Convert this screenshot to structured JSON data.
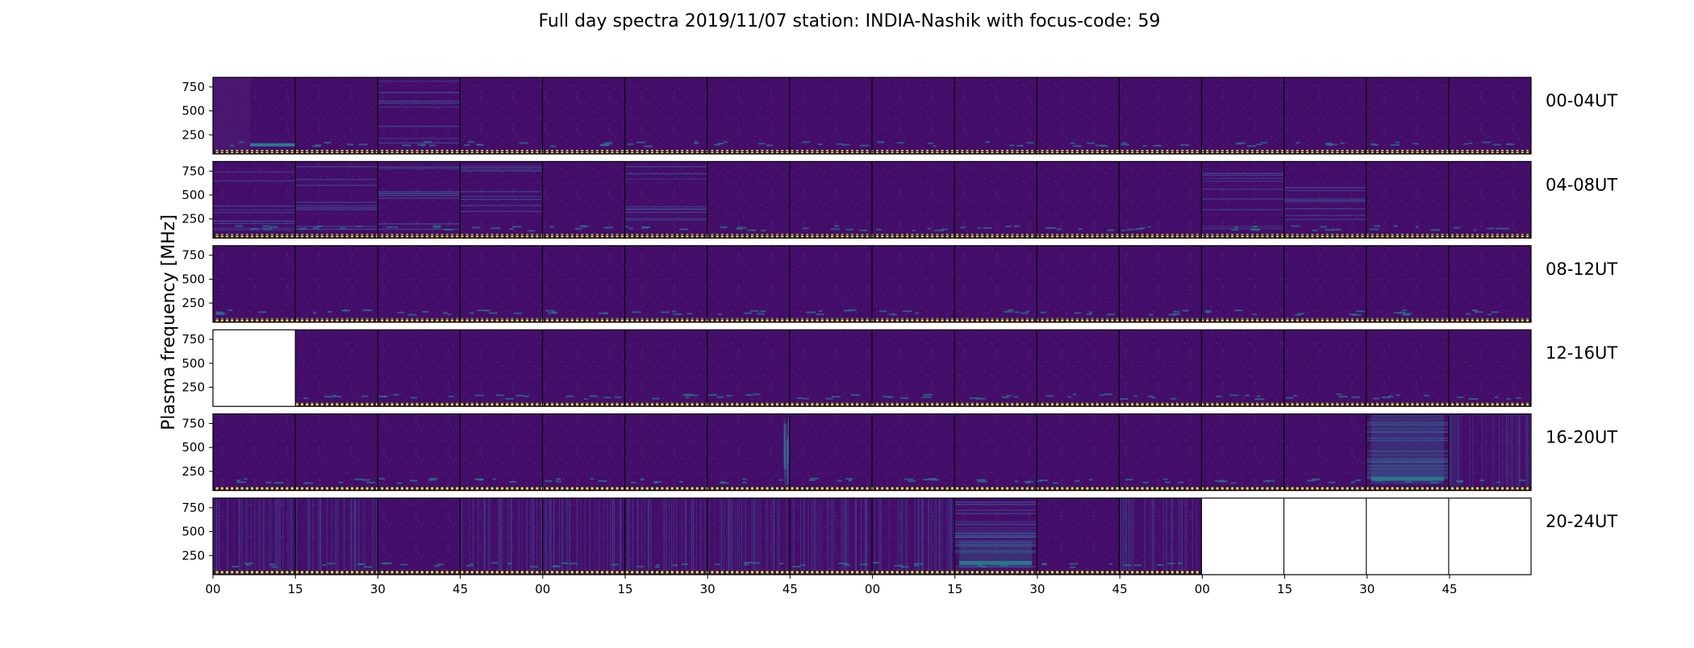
{
  "chart_data": {
    "type": "heatmap",
    "title": "Full day spectra 2019/11/07 station: INDIA-Nashik with focus-code: 59",
    "ylabel": "Plasma frequency [MHz]",
    "xlabel": "",
    "y_ticks": [
      "750",
      "500",
      "250"
    ],
    "x_ticks": [
      "00",
      "15",
      "30",
      "45",
      "00",
      "15",
      "30",
      "45",
      "00",
      "15",
      "30",
      "45",
      "00",
      "15",
      "30",
      "45"
    ],
    "colormap": "viridis",
    "colors": {
      "background": "#440d6a",
      "stripe": "#fde725",
      "accent": "#2a7b8e",
      "empty": "#ffffff"
    },
    "rows": [
      {
        "label": "00-04UT",
        "panels": [
          {
            "state": "data",
            "activity": "lowband-left"
          },
          {
            "state": "data",
            "activity": "quiet"
          },
          {
            "state": "data",
            "activity": "lines"
          },
          {
            "state": "data",
            "activity": "quiet"
          },
          {
            "state": "data",
            "activity": "quiet"
          },
          {
            "state": "data",
            "activity": "quiet"
          },
          {
            "state": "data",
            "activity": "quiet"
          },
          {
            "state": "data",
            "activity": "quiet"
          },
          {
            "state": "data",
            "activity": "quiet"
          },
          {
            "state": "data",
            "activity": "quiet"
          },
          {
            "state": "data",
            "activity": "quiet"
          },
          {
            "state": "data",
            "activity": "quiet"
          },
          {
            "state": "data",
            "activity": "quiet"
          },
          {
            "state": "data",
            "activity": "quiet"
          },
          {
            "state": "data",
            "activity": "quiet"
          },
          {
            "state": "data",
            "activity": "quiet"
          }
        ]
      },
      {
        "label": "04-08UT",
        "panels": [
          {
            "state": "data",
            "activity": "lines"
          },
          {
            "state": "data",
            "activity": "lines"
          },
          {
            "state": "data",
            "activity": "lines"
          },
          {
            "state": "data",
            "activity": "lines"
          },
          {
            "state": "data",
            "activity": "quiet"
          },
          {
            "state": "data",
            "activity": "lines"
          },
          {
            "state": "data",
            "activity": "quiet"
          },
          {
            "state": "data",
            "activity": "quiet"
          },
          {
            "state": "data",
            "activity": "quiet"
          },
          {
            "state": "data",
            "activity": "quiet"
          },
          {
            "state": "data",
            "activity": "quiet"
          },
          {
            "state": "data",
            "activity": "quiet"
          },
          {
            "state": "data",
            "activity": "lines"
          },
          {
            "state": "data",
            "activity": "lines"
          },
          {
            "state": "data",
            "activity": "quiet"
          },
          {
            "state": "data",
            "activity": "quiet"
          }
        ]
      },
      {
        "label": "08-12UT",
        "panels": [
          {
            "state": "data",
            "activity": "quiet"
          },
          {
            "state": "data",
            "activity": "quiet"
          },
          {
            "state": "data",
            "activity": "quiet"
          },
          {
            "state": "data",
            "activity": "quiet"
          },
          {
            "state": "data",
            "activity": "quiet"
          },
          {
            "state": "data",
            "activity": "quiet"
          },
          {
            "state": "data",
            "activity": "quiet"
          },
          {
            "state": "data",
            "activity": "quiet"
          },
          {
            "state": "data",
            "activity": "quiet"
          },
          {
            "state": "data",
            "activity": "quiet"
          },
          {
            "state": "data",
            "activity": "quiet"
          },
          {
            "state": "data",
            "activity": "quiet"
          },
          {
            "state": "data",
            "activity": "quiet"
          },
          {
            "state": "data",
            "activity": "quiet"
          },
          {
            "state": "data",
            "activity": "quiet"
          },
          {
            "state": "data",
            "activity": "quiet"
          }
        ]
      },
      {
        "label": "12-16UT",
        "panels": [
          {
            "state": "empty",
            "activity": "none"
          },
          {
            "state": "data",
            "activity": "quiet"
          },
          {
            "state": "data",
            "activity": "quiet"
          },
          {
            "state": "data",
            "activity": "quiet"
          },
          {
            "state": "data",
            "activity": "quiet"
          },
          {
            "state": "data",
            "activity": "quiet"
          },
          {
            "state": "data",
            "activity": "quiet"
          },
          {
            "state": "data",
            "activity": "quiet"
          },
          {
            "state": "data",
            "activity": "quiet"
          },
          {
            "state": "data",
            "activity": "quiet"
          },
          {
            "state": "data",
            "activity": "quiet"
          },
          {
            "state": "data",
            "activity": "quiet"
          },
          {
            "state": "data",
            "activity": "quiet"
          },
          {
            "state": "data",
            "activity": "quiet"
          },
          {
            "state": "data",
            "activity": "quiet"
          },
          {
            "state": "data",
            "activity": "quiet"
          }
        ]
      },
      {
        "label": "16-20UT",
        "panels": [
          {
            "state": "data",
            "activity": "quiet"
          },
          {
            "state": "data",
            "activity": "quiet"
          },
          {
            "state": "data",
            "activity": "quiet"
          },
          {
            "state": "data",
            "activity": "quiet"
          },
          {
            "state": "data",
            "activity": "quiet"
          },
          {
            "state": "data",
            "activity": "quiet"
          },
          {
            "state": "data",
            "activity": "edge-burst"
          },
          {
            "state": "data",
            "activity": "quiet"
          },
          {
            "state": "data",
            "activity": "quiet"
          },
          {
            "state": "data",
            "activity": "quiet"
          },
          {
            "state": "data",
            "activity": "quiet"
          },
          {
            "state": "data",
            "activity": "quiet"
          },
          {
            "state": "data",
            "activity": "quiet"
          },
          {
            "state": "data",
            "activity": "quiet"
          },
          {
            "state": "data",
            "activity": "storm"
          },
          {
            "state": "data",
            "activity": "vertical"
          }
        ]
      },
      {
        "label": "20-24UT",
        "panels": [
          {
            "state": "data",
            "activity": "vertical"
          },
          {
            "state": "data",
            "activity": "vertical"
          },
          {
            "state": "data",
            "activity": "quiet"
          },
          {
            "state": "data",
            "activity": "vertical"
          },
          {
            "state": "data",
            "activity": "vertical"
          },
          {
            "state": "data",
            "activity": "vertical"
          },
          {
            "state": "data",
            "activity": "vertical"
          },
          {
            "state": "data",
            "activity": "vertical"
          },
          {
            "state": "data",
            "activity": "vertical"
          },
          {
            "state": "data",
            "activity": "storm-low"
          },
          {
            "state": "data",
            "activity": "quiet"
          },
          {
            "state": "data",
            "activity": "vertical"
          },
          {
            "state": "empty",
            "activity": "none"
          },
          {
            "state": "empty",
            "activity": "none"
          },
          {
            "state": "empty",
            "activity": "none"
          },
          {
            "state": "empty",
            "activity": "none"
          }
        ]
      }
    ]
  }
}
